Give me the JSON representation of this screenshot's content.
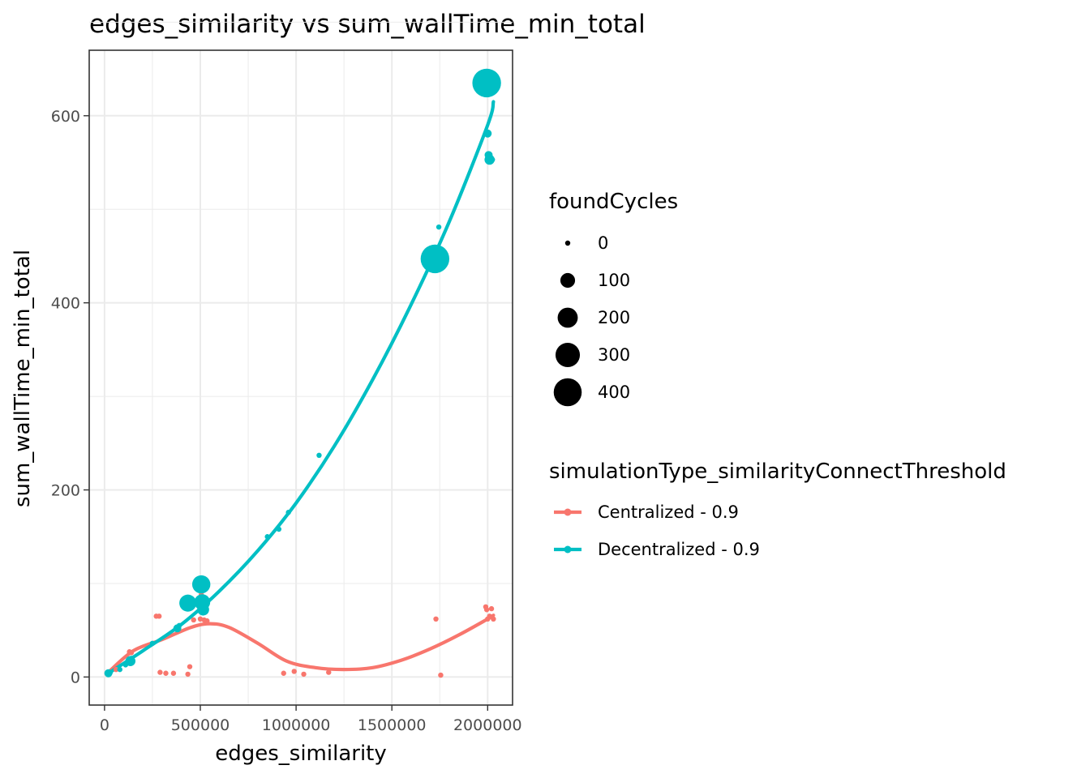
{
  "chart_data": {
    "type": "scatter",
    "title": "edges_similarity  vs  sum_wallTime_min_total",
    "xlabel": "edges_similarity",
    "ylabel": "sum_wallTime_min_total",
    "xlim": [
      -80000,
      2130000
    ],
    "ylim": [
      -30,
      670
    ],
    "x_ticks": [
      0,
      500000,
      1000000,
      1500000,
      2000000
    ],
    "x_tick_labels": [
      "0",
      "500000",
      "1000000",
      "1500000",
      "2000000"
    ],
    "y_ticks": [
      0,
      200,
      400,
      600
    ],
    "y_tick_labels": [
      "0",
      "200",
      "400",
      "600"
    ],
    "grid": true,
    "size_legend": {
      "title": "foundCycles",
      "entries": [
        {
          "label": "0",
          "value": 0
        },
        {
          "label": "100",
          "value": 100
        },
        {
          "label": "200",
          "value": 200
        },
        {
          "label": "300",
          "value": 300
        },
        {
          "label": "400",
          "value": 400
        }
      ]
    },
    "color_legend": {
      "title": "simulationType_similarityConnectThreshold",
      "placement": "right"
    },
    "series": [
      {
        "name": "Centralized - 0.9",
        "color": "#F8766D",
        "points": [
          {
            "x": 20000,
            "y": 5,
            "size": 0
          },
          {
            "x": 60000,
            "y": 8,
            "size": 0
          },
          {
            "x": 130000,
            "y": 27,
            "size": 0
          },
          {
            "x": 140000,
            "y": 26,
            "size": 0
          },
          {
            "x": 270000,
            "y": 65,
            "size": 0
          },
          {
            "x": 285000,
            "y": 65,
            "size": 0
          },
          {
            "x": 290000,
            "y": 5,
            "size": 0
          },
          {
            "x": 320000,
            "y": 4,
            "size": 0
          },
          {
            "x": 360000,
            "y": 4,
            "size": 0
          },
          {
            "x": 435000,
            "y": 3,
            "size": 0
          },
          {
            "x": 445000,
            "y": 11,
            "size": 0
          },
          {
            "x": 465000,
            "y": 61,
            "size": 0
          },
          {
            "x": 500000,
            "y": 62,
            "size": 0
          },
          {
            "x": 505000,
            "y": 88,
            "size": 0
          },
          {
            "x": 520000,
            "y": 61,
            "size": 0
          },
          {
            "x": 535000,
            "y": 60,
            "size": 0
          },
          {
            "x": 935000,
            "y": 4,
            "size": 0
          },
          {
            "x": 990000,
            "y": 6,
            "size": 0
          },
          {
            "x": 1040000,
            "y": 3,
            "size": 0
          },
          {
            "x": 1170000,
            "y": 5,
            "size": 0
          },
          {
            "x": 1730000,
            "y": 62,
            "size": 0
          },
          {
            "x": 1755000,
            "y": 2,
            "size": 0
          },
          {
            "x": 1990000,
            "y": 75,
            "size": 0
          },
          {
            "x": 1995000,
            "y": 72,
            "size": 0
          },
          {
            "x": 2000000,
            "y": 62,
            "size": 0
          },
          {
            "x": 2010000,
            "y": 65,
            "size": 0
          },
          {
            "x": 2020000,
            "y": 73,
            "size": 0
          },
          {
            "x": 2030000,
            "y": 62,
            "size": 0
          }
        ],
        "trend": [
          {
            "x": 20000,
            "y": 5
          },
          {
            "x": 150000,
            "y": 28
          },
          {
            "x": 300000,
            "y": 40
          },
          {
            "x": 450000,
            "y": 53
          },
          {
            "x": 550000,
            "y": 57
          },
          {
            "x": 650000,
            "y": 53
          },
          {
            "x": 800000,
            "y": 36
          },
          {
            "x": 950000,
            "y": 17
          },
          {
            "x": 1100000,
            "y": 10
          },
          {
            "x": 1250000,
            "y": 8
          },
          {
            "x": 1400000,
            "y": 10
          },
          {
            "x": 1550000,
            "y": 18
          },
          {
            "x": 1700000,
            "y": 30
          },
          {
            "x": 1850000,
            "y": 45
          },
          {
            "x": 2000000,
            "y": 62
          },
          {
            "x": 2030000,
            "y": 66
          }
        ]
      },
      {
        "name": "Decentralized - 0.9",
        "color": "#00BFC4",
        "points": [
          {
            "x": 20000,
            "y": 4,
            "size": 20
          },
          {
            "x": 30000,
            "y": 5,
            "size": 0
          },
          {
            "x": 80000,
            "y": 8,
            "size": 0
          },
          {
            "x": 110000,
            "y": 13,
            "size": 0
          },
          {
            "x": 135000,
            "y": 17,
            "size": 40
          },
          {
            "x": 140000,
            "y": 20,
            "size": 0
          },
          {
            "x": 250000,
            "y": 36,
            "size": 0
          },
          {
            "x": 380000,
            "y": 52,
            "size": 20
          },
          {
            "x": 390000,
            "y": 55,
            "size": 0
          },
          {
            "x": 435000,
            "y": 79,
            "size": 140
          },
          {
            "x": 505000,
            "y": 99,
            "size": 160
          },
          {
            "x": 510000,
            "y": 80,
            "size": 120
          },
          {
            "x": 515000,
            "y": 72,
            "size": 60
          },
          {
            "x": 850000,
            "y": 150,
            "size": 0
          },
          {
            "x": 910000,
            "y": 158,
            "size": 0
          },
          {
            "x": 960000,
            "y": 176,
            "size": 0
          },
          {
            "x": 1120000,
            "y": 237,
            "size": 0
          },
          {
            "x": 1725000,
            "y": 447,
            "size": 420
          },
          {
            "x": 1745000,
            "y": 481,
            "size": 0
          },
          {
            "x": 1995000,
            "y": 635,
            "size": 420
          },
          {
            "x": 2000000,
            "y": 581,
            "size": 20
          },
          {
            "x": 2005000,
            "y": 558,
            "size": 20
          },
          {
            "x": 2010000,
            "y": 553,
            "size": 40
          },
          {
            "x": 2025000,
            "y": 553,
            "size": 0
          }
        ],
        "trend": [
          {
            "x": 20000,
            "y": 4
          },
          {
            "x": 200000,
            "y": 28
          },
          {
            "x": 400000,
            "y": 56
          },
          {
            "x": 600000,
            "y": 92
          },
          {
            "x": 800000,
            "y": 135
          },
          {
            "x": 1000000,
            "y": 186
          },
          {
            "x": 1200000,
            "y": 247
          },
          {
            "x": 1400000,
            "y": 318
          },
          {
            "x": 1600000,
            "y": 398
          },
          {
            "x": 1800000,
            "y": 487
          },
          {
            "x": 2000000,
            "y": 590
          },
          {
            "x": 2030000,
            "y": 615
          }
        ]
      }
    ]
  }
}
